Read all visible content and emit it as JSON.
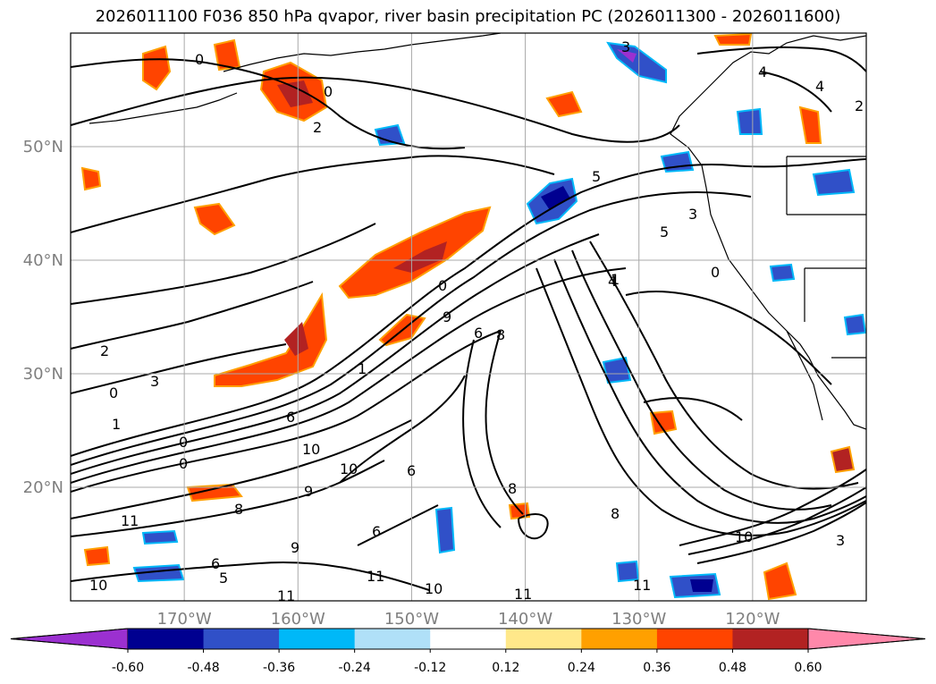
{
  "title": "2026011100 F036 850 hPa qvapor, river basin precipitation PC (2026011300 - 2026011600)",
  "map": {
    "lon_range": [
      -180,
      -110
    ],
    "lat_range": [
      10,
      60
    ],
    "lon_ticks": [
      {
        "lon": -170,
        "label": "170°W"
      },
      {
        "lon": -160,
        "label": "160°W"
      },
      {
        "lon": -150,
        "label": "150°W"
      },
      {
        "lon": -140,
        "label": "140°W"
      },
      {
        "lon": -130,
        "label": "130°W"
      },
      {
        "lon": -120,
        "label": "120°W"
      }
    ],
    "lat_ticks": [
      {
        "lat": 20,
        "label": "20°N"
      },
      {
        "lat": 30,
        "label": "30°N"
      },
      {
        "lat": 40,
        "label": "40°N"
      },
      {
        "lat": 50,
        "label": "50°N"
      }
    ],
    "grid": true,
    "contour_labels": [
      "0",
      "2",
      "3",
      "0",
      "4",
      "4",
      "5",
      "3",
      "5",
      "4",
      "0",
      "1",
      "0",
      "9",
      "6",
      "8",
      "1",
      "2",
      "3",
      "0",
      "1",
      "6",
      "0",
      "0",
      "10",
      "9",
      "10",
      "6",
      "8",
      "6",
      "8",
      "11",
      "6",
      "9",
      "5",
      "11",
      "10",
      "11",
      "10",
      "11",
      "8",
      "10",
      "11",
      "2",
      "3"
    ]
  },
  "colorbar": {
    "ticks": [
      "-0.60",
      "-0.48",
      "-0.36",
      "-0.24",
      "-0.12",
      "0.12",
      "0.24",
      "0.36",
      "0.48",
      "0.60"
    ],
    "colors": {
      "under": "#9b30d0",
      "bins": [
        "#000090",
        "#3050c8",
        "#00b8f8",
        "#b0e0f8",
        "#ffffff",
        "#ffe88a",
        "#ffa000",
        "#ff4400",
        "#b22222"
      ],
      "over": "#ff88aa"
    }
  }
}
